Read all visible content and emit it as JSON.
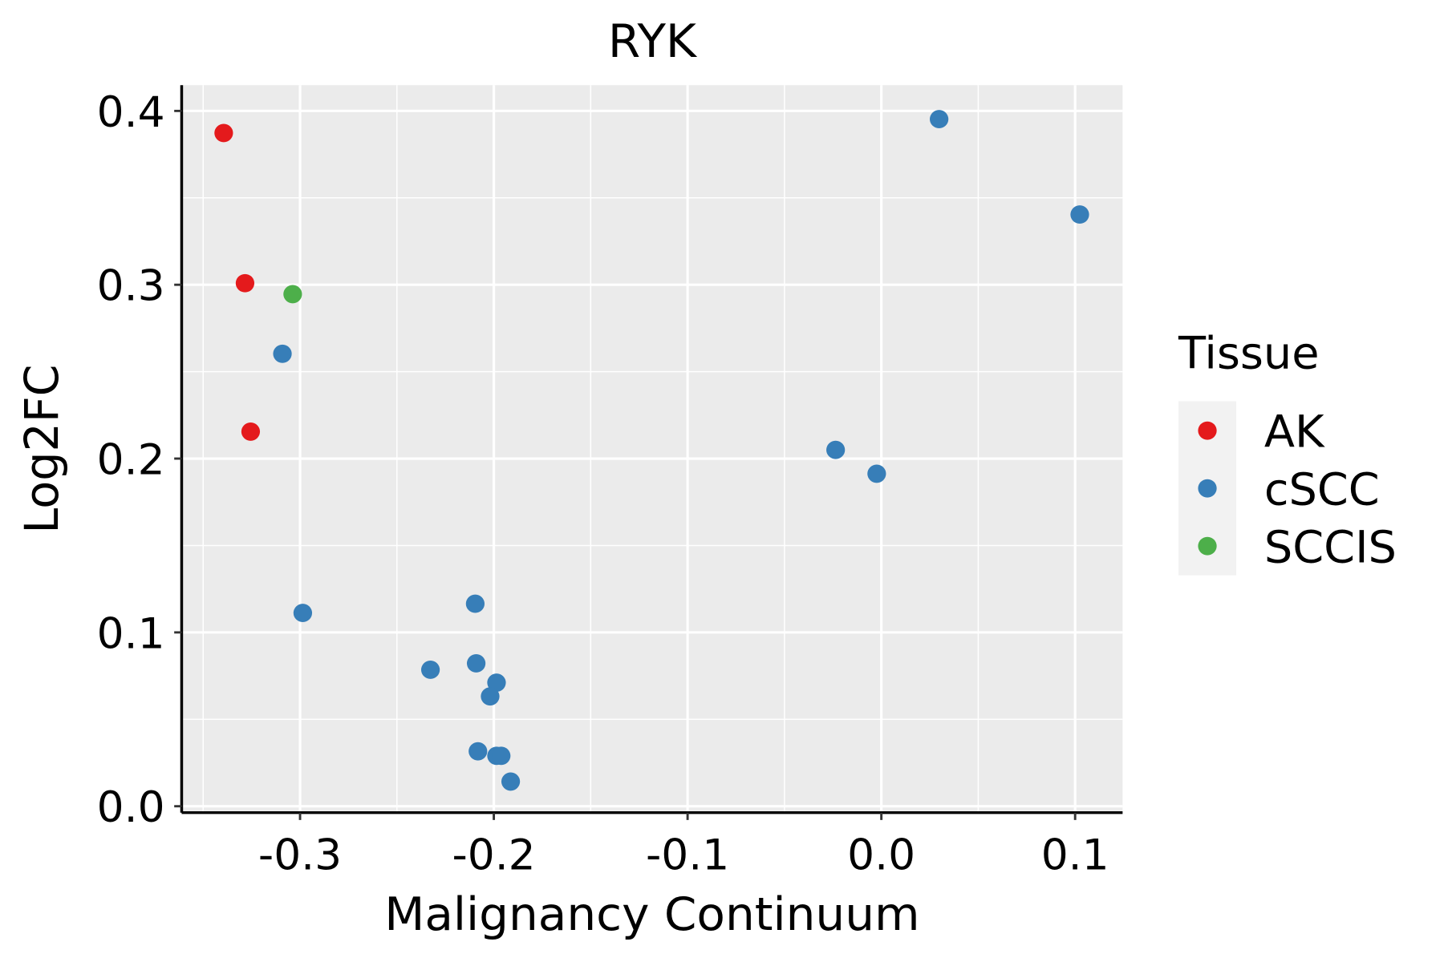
{
  "chart_data": {
    "type": "scatter",
    "title": "RYK",
    "xlabel": "Malignancy Continuum",
    "ylabel": "Log2FC",
    "xlim": [
      -0.3611,
      0.1245
    ],
    "ylim": [
      -0.0037,
      0.4148
    ],
    "xticks": [
      -0.3,
      -0.2,
      -0.1,
      0.0,
      0.1
    ],
    "xtick_labels": [
      "-0.3",
      "-0.2",
      "-0.1",
      "0.0",
      "0.1"
    ],
    "yticks": [
      0.0,
      0.1,
      0.2,
      0.3,
      0.4
    ],
    "ytick_labels": [
      "0.0",
      "0.1",
      "0.2",
      "0.3",
      "0.4"
    ],
    "grid": true,
    "legend": {
      "title": "Tissue",
      "placement": "right"
    },
    "series": [
      {
        "name": "AK",
        "color": "#E41A1C",
        "points": [
          [
            -0.3394,
            0.3873
          ],
          [
            -0.3284,
            0.3009
          ],
          [
            -0.3255,
            0.2155
          ]
        ]
      },
      {
        "name": "cSCC",
        "color": "#377EB8",
        "points": [
          [
            -0.3091,
            0.2603
          ],
          [
            -0.2986,
            0.1112
          ],
          [
            -0.2096,
            0.1165
          ],
          [
            -0.2327,
            0.0785
          ],
          [
            -0.2091,
            0.0822
          ],
          [
            -0.1986,
            0.0711
          ],
          [
            -0.2019,
            0.0632
          ],
          [
            -0.2082,
            0.0316
          ],
          [
            -0.1986,
            0.029
          ],
          [
            -0.1962,
            0.029
          ],
          [
            -0.1913,
            0.0142
          ],
          [
            -0.0236,
            0.205
          ],
          [
            -0.0024,
            0.1913
          ],
          [
            0.0298,
            0.3953
          ],
          [
            0.1024,
            0.3404
          ]
        ]
      },
      {
        "name": "SCCIS",
        "color": "#4DAF4A",
        "points": [
          [
            -0.3038,
            0.2946
          ]
        ]
      }
    ]
  }
}
